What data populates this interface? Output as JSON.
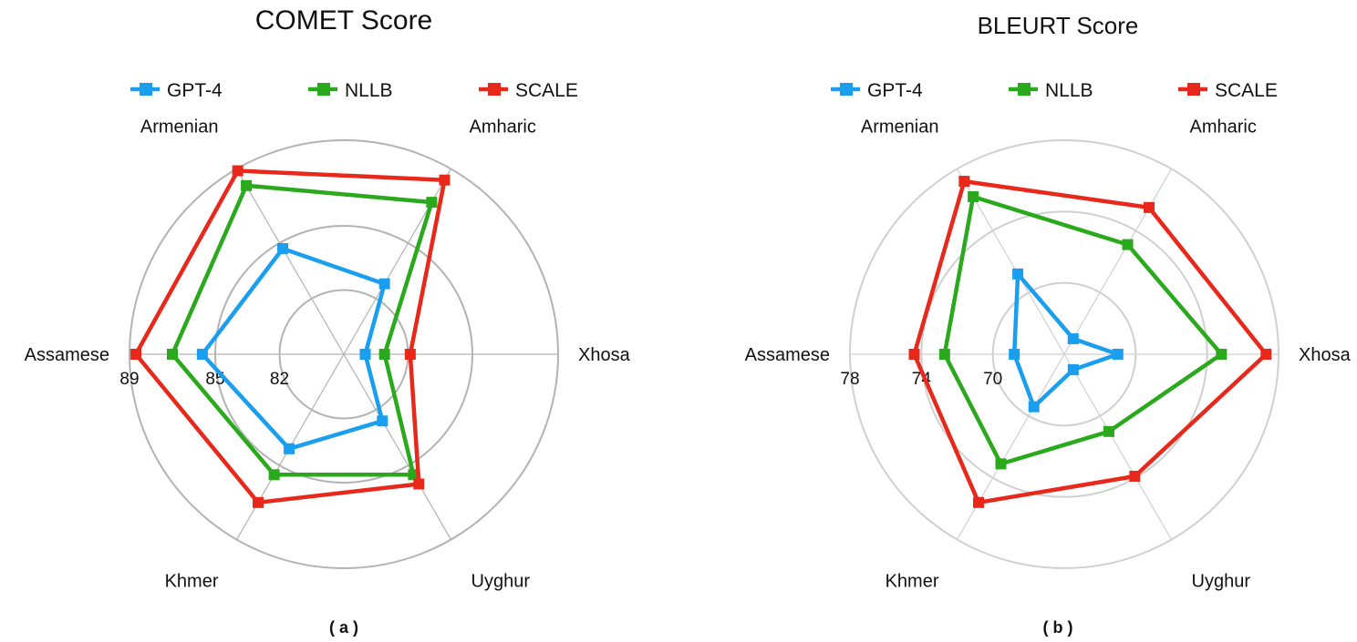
{
  "chart_data": [
    {
      "type": "radar",
      "title": "COMET Score",
      "caption": "( a )",
      "axes": [
        "Armenian",
        "Amharic",
        "Xhosa",
        "Uyghur",
        "Khmer",
        "Assamese"
      ],
      "rings": [
        79,
        82,
        85,
        89
      ],
      "tick_labels": [
        "89",
        "85",
        "82"
      ],
      "legend_position": "top",
      "series": [
        {
          "name": "GPT-4",
          "color": "#1a9ff0",
          "values": [
            84.7,
            82.8,
            80.0,
            82.6,
            84.1,
            85.6
          ]
        },
        {
          "name": "NLLB",
          "color": "#2aa91d",
          "values": [
            88.1,
            87.2,
            80.9,
            85.5,
            85.5,
            87.0
          ]
        },
        {
          "name": "SCALE",
          "color": "#e8281a",
          "values": [
            88.9,
            88.4,
            82.1,
            86.0,
            87.0,
            88.7
          ]
        }
      ]
    },
    {
      "type": "radar",
      "title": "BLEURT Score",
      "caption": "( b )",
      "axes": [
        "Armenian",
        "Amharic",
        "Xhosa",
        "Uyghur",
        "Khmer",
        "Assamese"
      ],
      "rings": [
        66,
        70,
        74,
        78
      ],
      "tick_labels": [
        "78",
        "74",
        "70"
      ],
      "legend_position": "top",
      "series": [
        {
          "name": "GPT-4",
          "color": "#1a9ff0",
          "values": [
            71.2,
            67.0,
            69.0,
            67.0,
            69.4,
            68.8
          ]
        },
        {
          "name": "NLLB",
          "color": "#2aa91d",
          "values": [
            76.2,
            73.1,
            74.8,
            71.0,
            73.1,
            72.7
          ]
        },
        {
          "name": "SCALE",
          "color": "#e8281a",
          "values": [
            77.2,
            75.5,
            77.3,
            73.9,
            75.6,
            74.4
          ]
        }
      ]
    }
  ]
}
